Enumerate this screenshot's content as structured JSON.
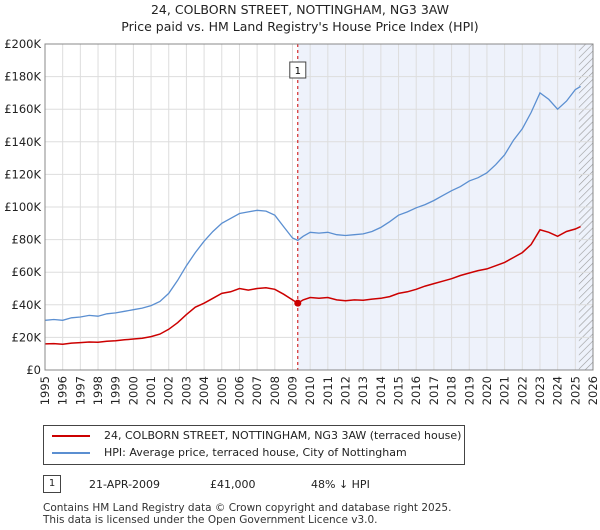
{
  "title_line1": "24, COLBORN STREET, NOTTINGHAM, NG3 3AW",
  "title_line2": "Price paid vs. HM Land Registry's House Price Index (HPI)",
  "colors": {
    "property": "#cc0000",
    "hpi": "#5b8fd1",
    "shade": "#eef2fb",
    "grid": "#dddddd"
  },
  "legend": {
    "property_label": "24, COLBORN STREET, NOTTINGHAM, NG3 3AW (terraced house)",
    "hpi_label": "HPI: Average price, terraced house, City of Nottingham"
  },
  "transaction": {
    "badge": "1",
    "date": "21-APR-2009",
    "price": "£41,000",
    "hpi_delta": "48% ↓ HPI"
  },
  "footer": {
    "line1": "Contains HM Land Registry data © Crown copyright and database right 2025.",
    "line2": "This data is licensed under the Open Government Licence v3.0."
  },
  "chart_data": {
    "type": "line",
    "title": "24, COLBORN STREET, NOTTINGHAM, NG3 3AW — Price paid vs. HM Land Registry's House Price Index (HPI)",
    "xlabel": "",
    "ylabel": "",
    "xlim": [
      1995,
      2026
    ],
    "ylim": [
      0,
      200000
    ],
    "x_ticks": [
      "1995",
      "1996",
      "1997",
      "1998",
      "1999",
      "2000",
      "2001",
      "2002",
      "2003",
      "2004",
      "2005",
      "2006",
      "2007",
      "2008",
      "2009",
      "2010",
      "2011",
      "2012",
      "2013",
      "2014",
      "2015",
      "2016",
      "2017",
      "2018",
      "2019",
      "2020",
      "2021",
      "2022",
      "2023",
      "2024",
      "2025",
      "2026"
    ],
    "y_ticks": [
      {
        "value": 0,
        "label": "£0"
      },
      {
        "value": 20000,
        "label": "£20K"
      },
      {
        "value": 40000,
        "label": "£40K"
      },
      {
        "value": 60000,
        "label": "£60K"
      },
      {
        "value": 80000,
        "label": "£80K"
      },
      {
        "value": 100000,
        "label": "£100K"
      },
      {
        "value": 120000,
        "label": "£120K"
      },
      {
        "value": 140000,
        "label": "£140K"
      },
      {
        "value": 160000,
        "label": "£160K"
      },
      {
        "value": 180000,
        "label": "£180K"
      },
      {
        "value": 200000,
        "label": "£200K"
      }
    ],
    "grid": true,
    "shaded_range": [
      2009.3,
      2026
    ],
    "hatched_range": [
      2025.2,
      2026
    ],
    "marker": {
      "label": "1",
      "x": 2009.3,
      "y": 41000
    },
    "series": [
      {
        "name": "24, COLBORN STREET, NOTTINGHAM, NG3 3AW (terraced house)",
        "color": "#cc0000",
        "x": [
          1995.0,
          1995.5,
          1996.0,
          1996.5,
          1997.0,
          1997.5,
          1998.0,
          1998.5,
          1999.0,
          1999.5,
          2000.0,
          2000.5,
          2001.0,
          2001.5,
          2002.0,
          2002.5,
          2003.0,
          2003.5,
          2004.0,
          2004.5,
          2005.0,
          2005.5,
          2006.0,
          2006.5,
          2007.0,
          2007.5,
          2008.0,
          2008.5,
          2009.0,
          2009.3,
          2009.6,
          2010.0,
          2010.5,
          2011.0,
          2011.5,
          2012.0,
          2012.5,
          2013.0,
          2013.5,
          2014.0,
          2014.5,
          2015.0,
          2015.5,
          2016.0,
          2016.5,
          2017.0,
          2017.5,
          2018.0,
          2018.5,
          2019.0,
          2019.5,
          2020.0,
          2020.5,
          2021.0,
          2021.5,
          2022.0,
          2022.5,
          2023.0,
          2023.5,
          2024.0,
          2024.5,
          2025.0,
          2025.3
        ],
        "values": [
          16000,
          16200,
          15800,
          16500,
          16800,
          17200,
          17000,
          17600,
          18000,
          18500,
          19000,
          19500,
          20500,
          22000,
          25000,
          29000,
          34000,
          38500,
          41000,
          44000,
          47000,
          48000,
          50000,
          49000,
          50000,
          50500,
          49500,
          46500,
          43000,
          41000,
          43000,
          44500,
          44000,
          44500,
          43000,
          42500,
          43000,
          42800,
          43500,
          44000,
          45000,
          47000,
          48000,
          49500,
          51500,
          53000,
          54500,
          56000,
          58000,
          59500,
          61000,
          62000,
          64000,
          66000,
          69000,
          72000,
          77000,
          86000,
          84500,
          82000,
          85000,
          86500,
          88000
        ]
      },
      {
        "name": "HPI: Average price, terraced house, City of Nottingham",
        "color": "#5b8fd1",
        "x": [
          1995.0,
          1995.5,
          1996.0,
          1996.5,
          1997.0,
          1997.5,
          1998.0,
          1998.5,
          1999.0,
          1999.5,
          2000.0,
          2000.5,
          2001.0,
          2001.5,
          2002.0,
          2002.5,
          2003.0,
          2003.5,
          2004.0,
          2004.5,
          2005.0,
          2005.5,
          2006.0,
          2006.5,
          2007.0,
          2007.5,
          2008.0,
          2008.5,
          2009.0,
          2009.3,
          2009.6,
          2010.0,
          2010.5,
          2011.0,
          2011.5,
          2012.0,
          2012.5,
          2013.0,
          2013.5,
          2014.0,
          2014.5,
          2015.0,
          2015.5,
          2016.0,
          2016.5,
          2017.0,
          2017.5,
          2018.0,
          2018.5,
          2019.0,
          2019.5,
          2020.0,
          2020.5,
          2021.0,
          2021.5,
          2022.0,
          2022.5,
          2023.0,
          2023.5,
          2024.0,
          2024.5,
          2025.0,
          2025.3
        ],
        "values": [
          30500,
          31000,
          30500,
          32000,
          32500,
          33500,
          33000,
          34500,
          35000,
          36000,
          37000,
          38000,
          39500,
          42000,
          47000,
          55000,
          64000,
          72000,
          79000,
          85000,
          90000,
          93000,
          96000,
          97000,
          98000,
          97500,
          95000,
          88000,
          81000,
          79500,
          82000,
          84500,
          84000,
          84500,
          83000,
          82500,
          83000,
          83500,
          85000,
          87500,
          91000,
          95000,
          97000,
          99500,
          101500,
          104000,
          107000,
          110000,
          112500,
          116000,
          118000,
          121000,
          126000,
          132000,
          141000,
          148000,
          158000,
          170000,
          166000,
          160000,
          165000,
          172000,
          174000
        ]
      }
    ]
  }
}
